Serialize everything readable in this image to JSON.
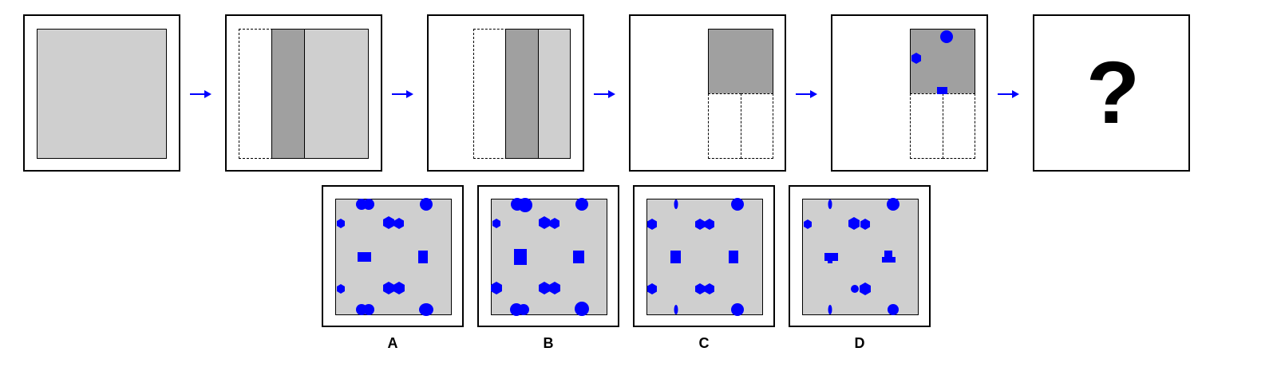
{
  "colors": {
    "accent": "#0000ff",
    "panel_fill": "#cfcfcf",
    "dark_fill": "#a0a0a0"
  },
  "sequence": {
    "question_mark": "?"
  },
  "options": [
    {
      "label": "A"
    },
    {
      "label": "B"
    },
    {
      "label": "C"
    },
    {
      "label": "D"
    }
  ]
}
